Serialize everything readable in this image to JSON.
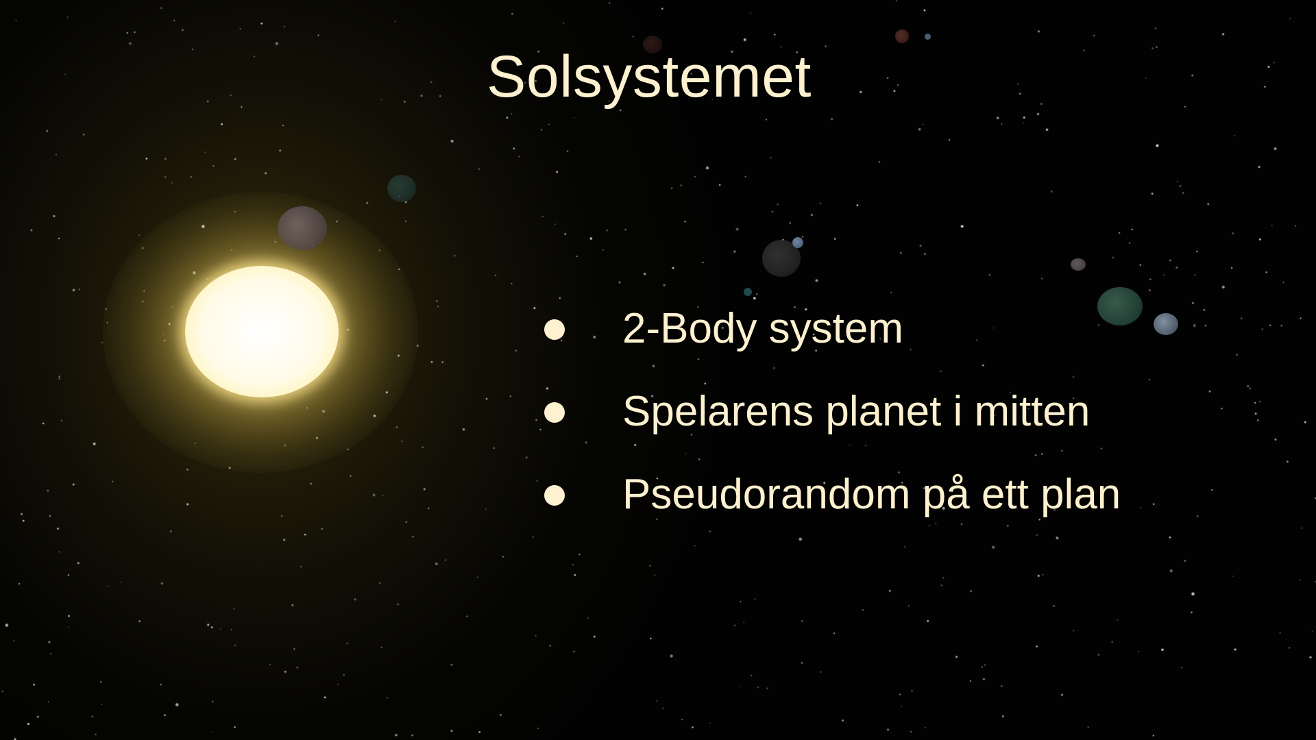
{
  "slide": {
    "title": "Solsystemet",
    "bullets": [
      "2-Body system",
      "Spelarens planet i mitten",
      "Pseudorandom på ett plan"
    ]
  },
  "colors": {
    "text": "#fdf1cf",
    "background": "#020202",
    "sun": "#fff6cc"
  }
}
